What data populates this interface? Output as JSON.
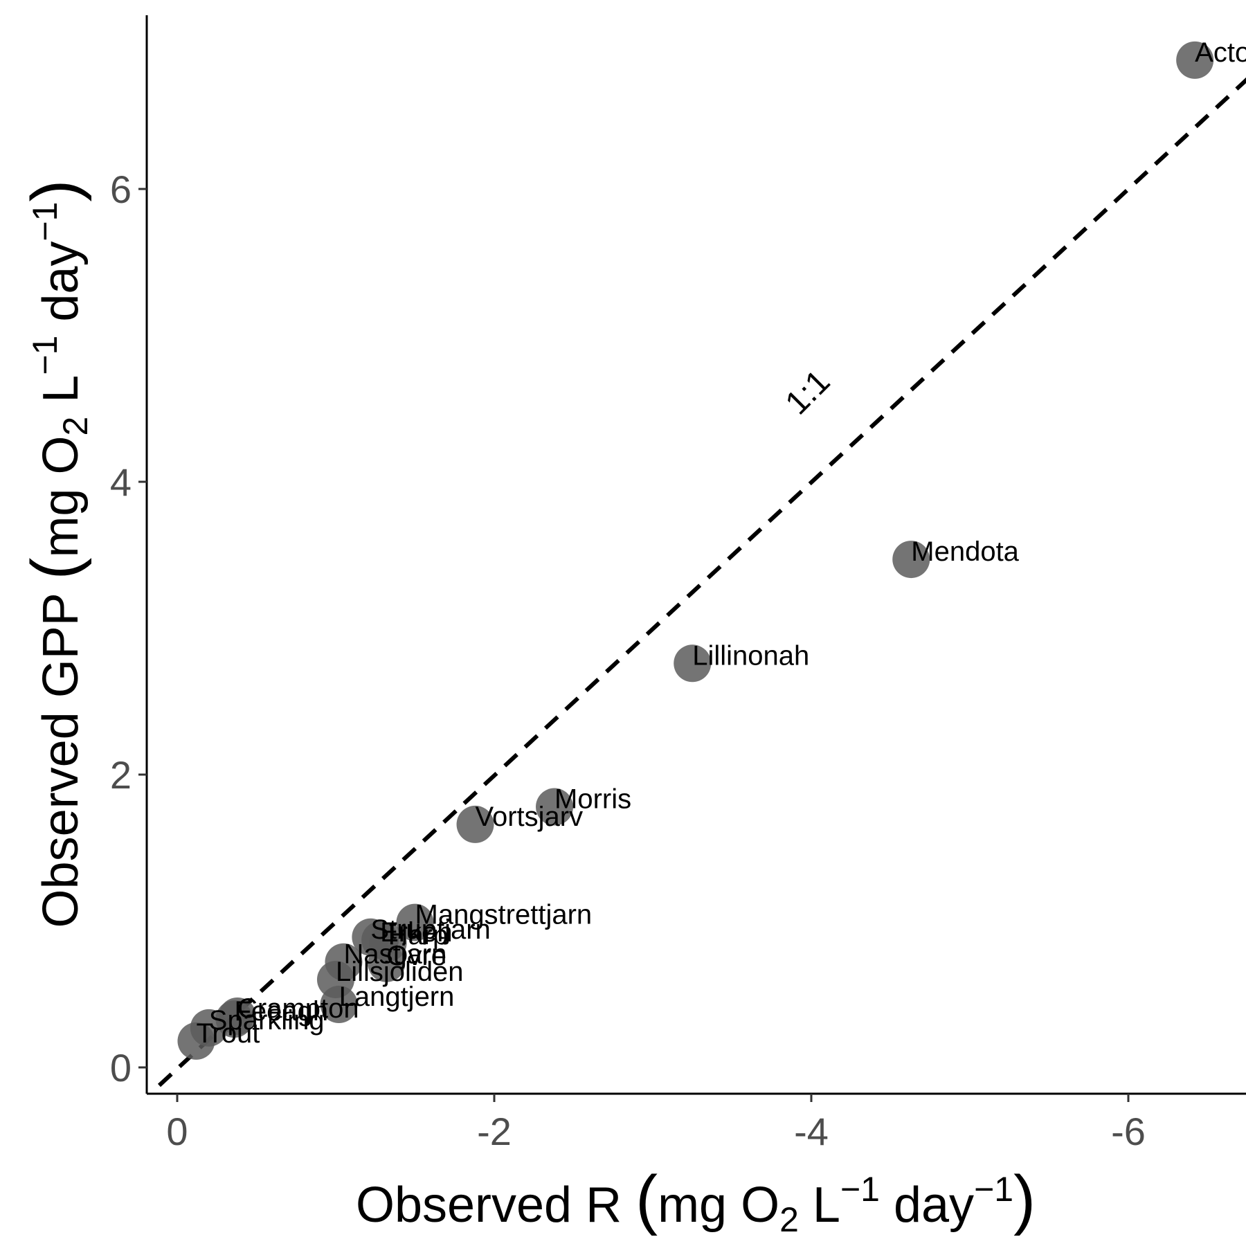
{
  "chart_data": {
    "type": "scatter",
    "title": "",
    "xlabel": "Observed R (mg O2 L−1 day−1)",
    "ylabel": "Observed GPP (mg O2 L−1 day−1)",
    "xlabel_parts": [
      "Observed R ",
      "(",
      "mg O",
      "2",
      " L",
      "−1",
      " day",
      "−1",
      ")"
    ],
    "ylabel_parts": [
      "Observed GPP ",
      "(",
      "mg O",
      "2",
      " L",
      "−1",
      " day",
      "−1",
      ")"
    ],
    "x_reversed": true,
    "xlim": [
      0.2,
      -6.8
    ],
    "ylim": [
      -0.18,
      7.2
    ],
    "x_ticks": [
      0,
      -2,
      -4,
      -6
    ],
    "x_tick_labels": [
      "0",
      "-2",
      "-4",
      "-6"
    ],
    "y_ticks": [
      0,
      2,
      4,
      6
    ],
    "y_tick_labels": [
      "0",
      "2",
      "4",
      "6"
    ],
    "grid": false,
    "reference_line": {
      "label": "1:1",
      "x": [
        0,
        -6.8
      ],
      "y": [
        0,
        6.8
      ]
    },
    "points": [
      {
        "name": "Acton",
        "x": -6.42,
        "y": 6.88
      },
      {
        "name": "Mendota",
        "x": -4.63,
        "y": 3.47
      },
      {
        "name": "Lillinonah",
        "x": -3.25,
        "y": 2.76
      },
      {
        "name": "Morris",
        "x": -2.38,
        "y": 1.78
      },
      {
        "name": "Vortsjarv",
        "x": -1.88,
        "y": 1.66
      },
      {
        "name": "Mangstrettjarn",
        "x": -1.5,
        "y": 0.99
      },
      {
        "name": "Struptjarn",
        "x": -1.22,
        "y": 0.89
      },
      {
        "name": "Erken",
        "x": -1.28,
        "y": 0.87
      },
      {
        "name": "Harp",
        "x": -1.33,
        "y": 0.85
      },
      {
        "name": "Nastjarn",
        "x": -1.05,
        "y": 0.72
      },
      {
        "name": "Ovre",
        "x": -1.32,
        "y": 0.71
      },
      {
        "name": "Lillsjoliden",
        "x": -1.0,
        "y": 0.6
      },
      {
        "name": "Langtjern",
        "x": -1.02,
        "y": 0.43
      },
      {
        "name": "Crampton",
        "x": -0.38,
        "y": 0.35
      },
      {
        "name": "Feeagh",
        "x": -0.36,
        "y": 0.33
      },
      {
        "name": "Sparkling",
        "x": -0.2,
        "y": 0.27
      },
      {
        "name": "Trout",
        "x": -0.12,
        "y": 0.18
      }
    ]
  }
}
